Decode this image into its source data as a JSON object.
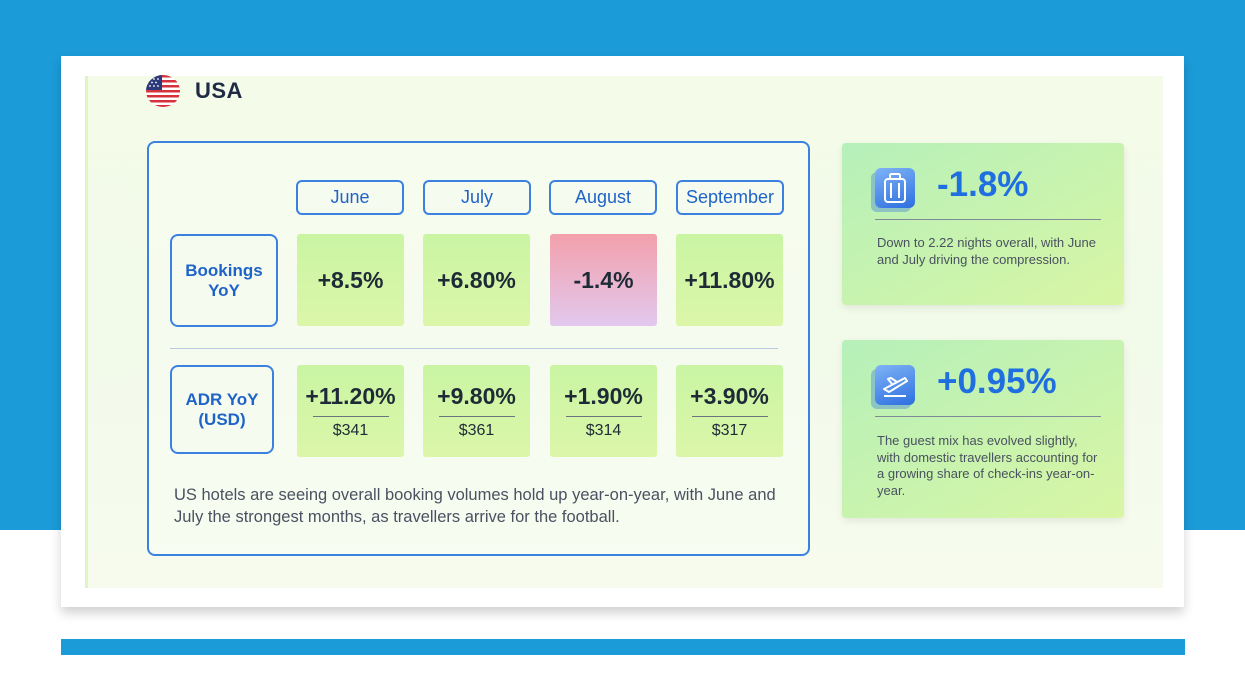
{
  "country": {
    "name": "USA",
    "flag_icon": "us-flag-icon"
  },
  "months": [
    "June",
    "July",
    "August",
    "September"
  ],
  "bookings": {
    "label": "Bookings YoY",
    "values": [
      "+8.5%",
      "+6.80%",
      "-1.4%",
      "+11.80%"
    ]
  },
  "adr": {
    "label": "ADR YoY (USD)",
    "values": [
      {
        "change": "+11.20%",
        "usd": "$341"
      },
      {
        "change": "+9.80%",
        "usd": "$361"
      },
      {
        "change": "+1.90%",
        "usd": "$314"
      },
      {
        "change": "+3.90%",
        "usd": "$317"
      }
    ]
  },
  "summary": "US hotels are seeing overall booking volumes hold up year-on-year, with June and July the strongest months, as travellers arrive for the football.",
  "stats": [
    {
      "icon": "suitcase-icon",
      "value": "-1.8%",
      "text": "Down to 2.22 nights overall, with June and July driving the compression."
    },
    {
      "icon": "plane-ticket-icon",
      "value": "+0.95%",
      "text": "The guest mix has evolved slightly, with domestic travellers accounting for a growing share of check-ins year-on-year."
    }
  ],
  "colors": {
    "accent": "#1f6fe0",
    "brand_band": "#1b9bd8",
    "positive": "#c9f5a3",
    "negative": "#f3a0ab"
  }
}
